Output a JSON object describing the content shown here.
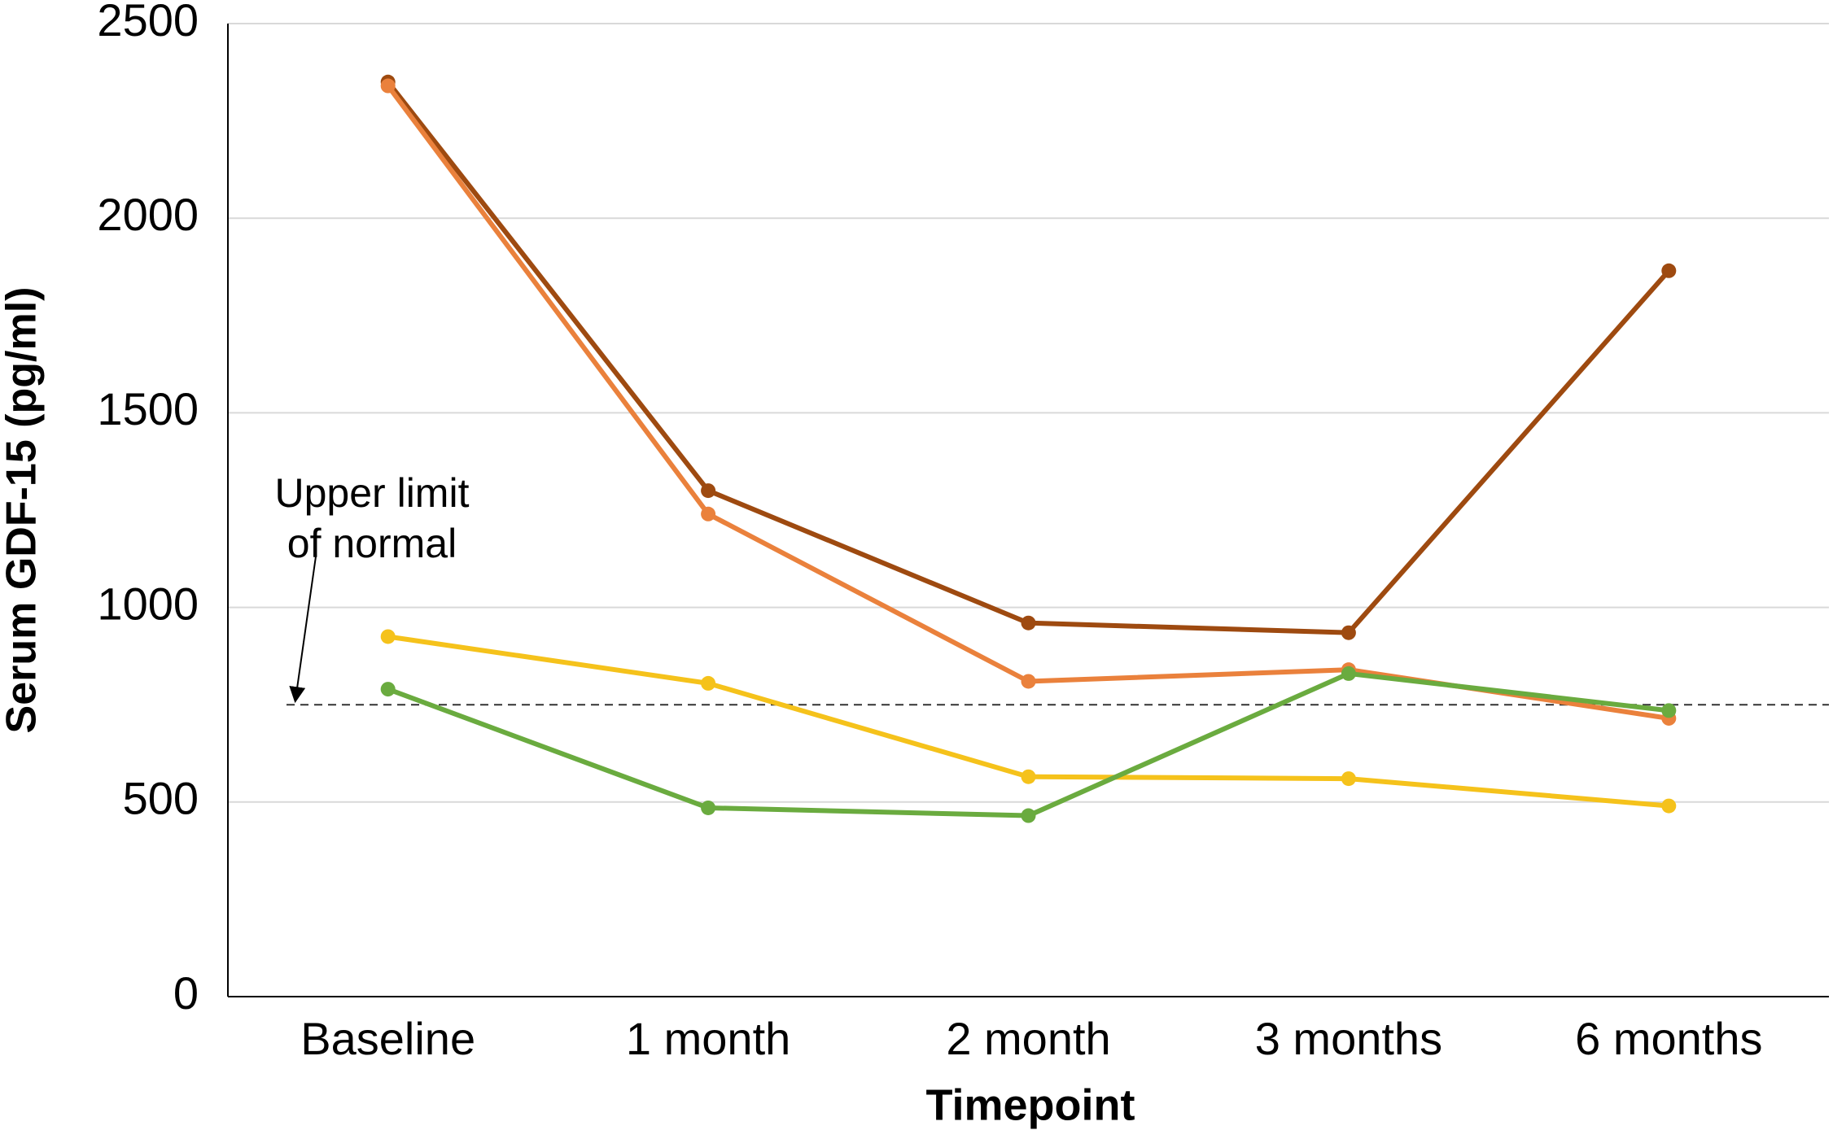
{
  "chart_data": {
    "type": "line",
    "x_label": "Timepoint",
    "y_label": "Serum GDF-15 (pg/ml)",
    "categories": [
      "Baseline",
      "1 month",
      "2 month",
      "3 months",
      "6 months"
    ],
    "series": [
      {
        "color": "#9e4a10",
        "values": [
          2350,
          1300,
          960,
          935,
          1865
        ]
      },
      {
        "color": "#ea813c",
        "values": [
          2340,
          1240,
          810,
          840,
          715
        ]
      },
      {
        "color": "#f5c21b",
        "values": [
          925,
          805,
          565,
          560,
          490
        ]
      },
      {
        "color": "#6aab3f",
        "values": [
          790,
          485,
          465,
          830,
          735
        ]
      }
    ],
    "ylim": [
      0,
      2500
    ],
    "yticks": [
      0,
      500,
      1000,
      1500,
      2000,
      2500
    ],
    "grid": true,
    "reference_line": {
      "value": 750,
      "label": [
        "Upper limit",
        "of normal"
      ]
    }
  }
}
